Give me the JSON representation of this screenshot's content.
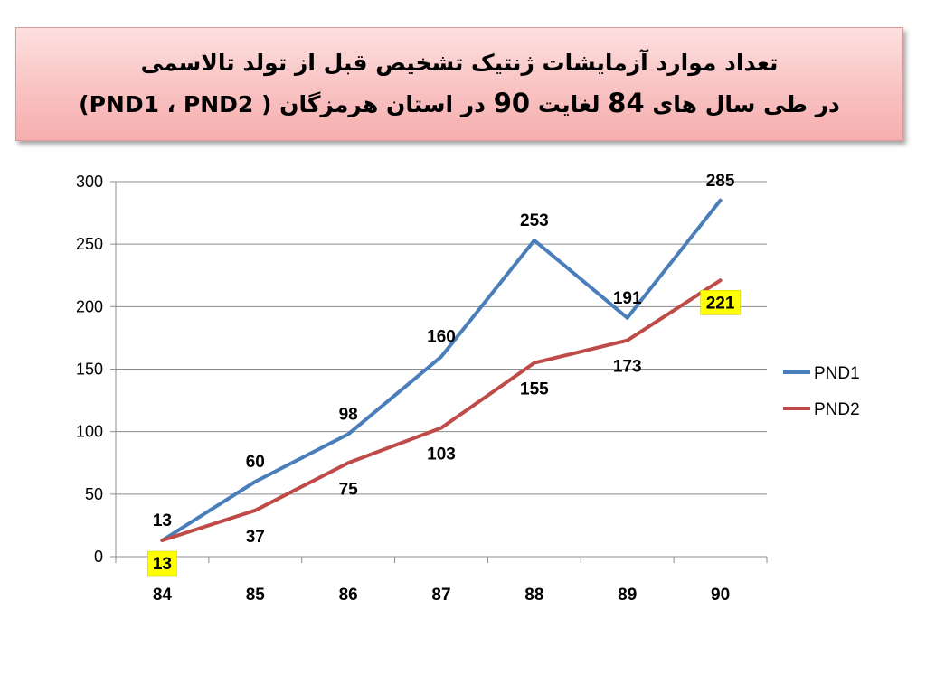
{
  "title": {
    "line1": "تعداد موارد آزمایشات ژنتیک تشخیص قبل از تولد تالاسمی",
    "line2_a": "(PND1 ، PND2 ) در طی سال های",
    "line2_num1": "84",
    "line2_b": "لغایت",
    "line2_num2": "90",
    "line2_c": "در استان هرمزگان"
  },
  "chart_data": {
    "type": "line",
    "categories": [
      "84",
      "85",
      "86",
      "87",
      "88",
      "89",
      "90"
    ],
    "ylim": [
      0,
      300
    ],
    "yticks": [
      0,
      50,
      100,
      150,
      200,
      250,
      300
    ],
    "grid": true,
    "legend_position": "right",
    "series": [
      {
        "name": "PND1",
        "color": "#4a7ebb",
        "values": [
          13,
          60,
          98,
          160,
          253,
          191,
          285
        ]
      },
      {
        "name": "PND2",
        "color": "#be4b48",
        "values": [
          13,
          37,
          75,
          103,
          155,
          173,
          221
        ]
      }
    ],
    "highlight_color": "#ffff00"
  }
}
